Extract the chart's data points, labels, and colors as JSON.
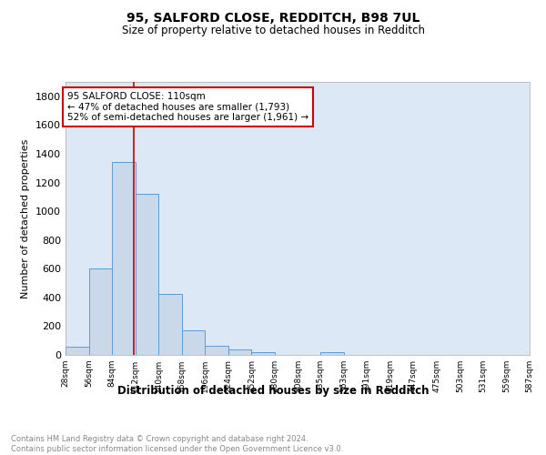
{
  "title1": "95, SALFORD CLOSE, REDDITCH, B98 7UL",
  "title2": "Size of property relative to detached houses in Redditch",
  "xlabel": "Distribution of detached houses by size in Redditch",
  "ylabel": "Number of detached properties",
  "footnote1": "Contains HM Land Registry data © Crown copyright and database right 2024.",
  "footnote2": "Contains public sector information licensed under the Open Government Licence v3.0.",
  "bin_edges": [
    28,
    56,
    84,
    112,
    140,
    168,
    196,
    224,
    252,
    280,
    308,
    335,
    363,
    391,
    419,
    447,
    475,
    503,
    531,
    559,
    587
  ],
  "bin_counts": [
    57,
    600,
    1343,
    1120,
    425,
    170,
    65,
    35,
    18,
    0,
    0,
    18,
    0,
    0,
    0,
    0,
    0,
    0,
    0,
    0
  ],
  "bar_color": "#c9d9ea",
  "bar_edge_color": "#5b9bd5",
  "vline_x": 110,
  "vline_color": "#cc0000",
  "annotation_text": "95 SALFORD CLOSE: 110sqm\n← 47% of detached houses are smaller (1,793)\n52% of semi-detached houses are larger (1,961) →",
  "annotation_box_color": "#cc0000",
  "annotation_bg": "#ffffff",
  "ylim": [
    0,
    1900
  ],
  "yticks": [
    0,
    200,
    400,
    600,
    800,
    1000,
    1200,
    1400,
    1600,
    1800
  ],
  "grid_color": "#dce8f4",
  "bg_color": "#dce8f5",
  "tick_labels": [
    "28sqm",
    "56sqm",
    "84sqm",
    "112sqm",
    "140sqm",
    "168sqm",
    "196sqm",
    "224sqm",
    "252sqm",
    "280sqm",
    "308sqm",
    "335sqm",
    "363sqm",
    "391sqm",
    "419sqm",
    "447sqm",
    "475sqm",
    "503sqm",
    "531sqm",
    "559sqm",
    "587sqm"
  ]
}
